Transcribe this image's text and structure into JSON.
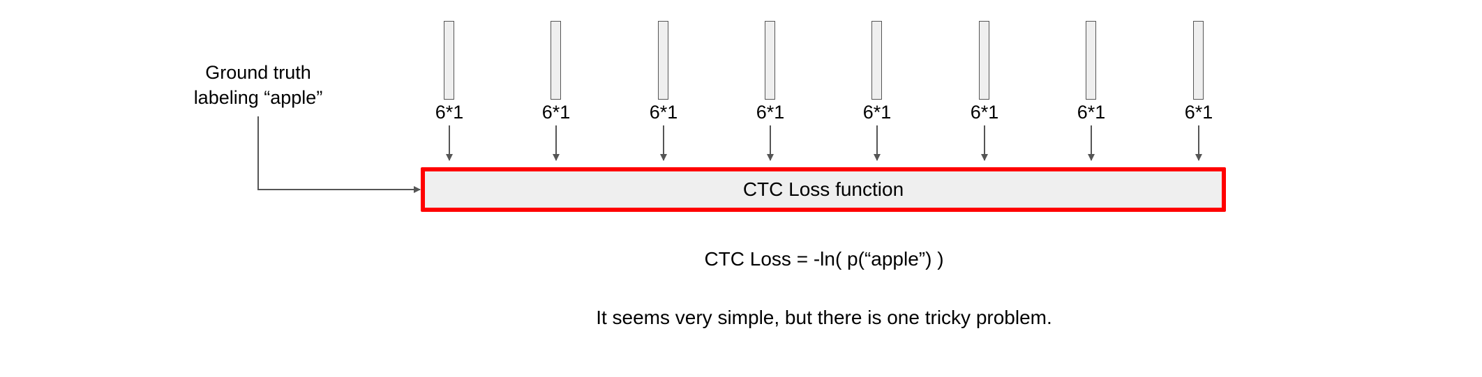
{
  "ground_truth": {
    "line1": "Ground truth",
    "line2": "labeling “apple”"
  },
  "vectors": [
    {
      "label": "6*1"
    },
    {
      "label": "6*1"
    },
    {
      "label": "6*1"
    },
    {
      "label": "6*1"
    },
    {
      "label": "6*1"
    },
    {
      "label": "6*1"
    },
    {
      "label": "6*1"
    },
    {
      "label": "6*1"
    }
  ],
  "ctc_box": {
    "label": "CTC Loss function"
  },
  "formula": "CTC Loss = -ln( p(“apple”) )",
  "caption": "It seems very simple, but there is one tricky problem.",
  "colors": {
    "box_border": "#ff0000",
    "box_fill": "#efefef",
    "arrow": "#555555"
  }
}
